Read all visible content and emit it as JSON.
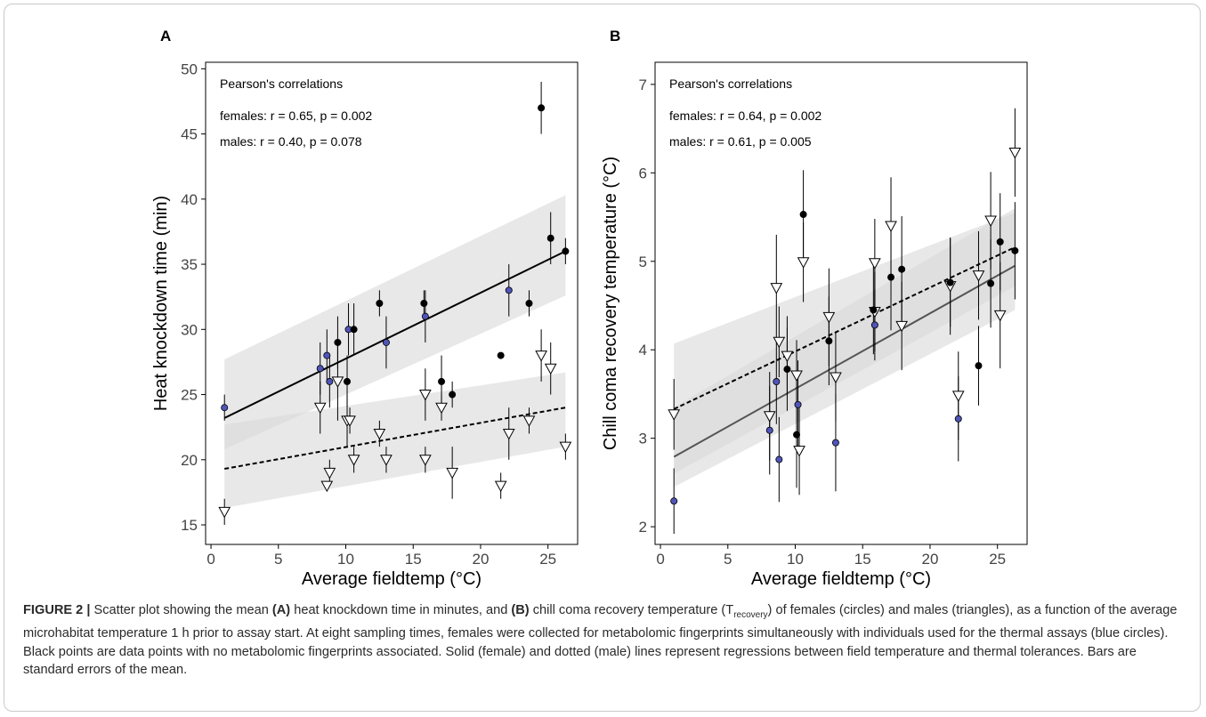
{
  "panels": [
    {
      "letter": "A",
      "annotation_title": "Pearson's correlations",
      "annotation_lines": [
        "females: r = 0.65, p = 0.002",
        "males: r = 0.40, p = 0.078"
      ]
    },
    {
      "letter": "B",
      "annotation_title": "Pearson's correlations",
      "annotation_lines": [
        "females: r = 0.64, p = 0.002",
        "males: r = 0.61, p = 0.005"
      ]
    }
  ],
  "caption": {
    "label": "FIGURE 2 |",
    "t1": " Scatter plot showing the mean ",
    "a": "(A)",
    "t2": " heat knockdown time in minutes, and ",
    "b": "(B)",
    "t3": " chill coma recovery temperature (T",
    "sub": "recovery",
    "t4": ") of females (circles) and males (triangles), as a function of the average microhabitat temperature 1 h prior to assay start. At eight sampling times, females were collected for metabolomic fingerprints simultaneously with individuals used for the thermal assays (blue circles). Black points are data points with no metabolomic fingerprints associated. Solid (female) and dotted (male) lines represent regressions between field temperature and thermal tolerances. Bars are standard errors of the mean."
  },
  "colors": {
    "blue_point": "#4f55b8",
    "black_point": "#000000",
    "male_marker_fill": "#ffffff",
    "ribbon": "#d9d9d9",
    "female_line_A": "#000000",
    "female_line_B": "#555555",
    "male_line": "#000000"
  },
  "chart_data": [
    {
      "type": "scatter",
      "title": "",
      "xlabel": "Average fieldtemp (°C)",
      "ylabel": "Heat knockdown time (min)",
      "xlim": [
        -0.4,
        27.2
      ],
      "ylim": [
        13.5,
        50.5
      ],
      "xticks": [
        0,
        5,
        10,
        15,
        20,
        25
      ],
      "yticks": [
        15,
        20,
        25,
        30,
        35,
        40,
        45,
        50
      ],
      "grid": false,
      "series": [],
      "females": [
        {
          "x": 1.0,
          "y": 24.0,
          "se": 1.0,
          "group": "blue"
        },
        {
          "x": 8.1,
          "y": 27.0,
          "se": 2.0,
          "group": "blue"
        },
        {
          "x": 8.6,
          "y": 28.0,
          "se": 2.0,
          "group": "blue"
        },
        {
          "x": 8.8,
          "y": 26.0,
          "se": 2.0,
          "group": "blue"
        },
        {
          "x": 10.2,
          "y": 30.0,
          "se": 2.0,
          "group": "blue"
        },
        {
          "x": 13.0,
          "y": 29.0,
          "se": 2.0,
          "group": "blue"
        },
        {
          "x": 15.9,
          "y": 31.0,
          "se": 2.0,
          "group": "blue"
        },
        {
          "x": 22.1,
          "y": 33.0,
          "se": 2.0,
          "group": "blue"
        },
        {
          "x": 9.4,
          "y": 29.0,
          "se": 2.0,
          "group": "black"
        },
        {
          "x": 10.1,
          "y": 26.0,
          "se": 2.0,
          "group": "black"
        },
        {
          "x": 10.6,
          "y": 30.0,
          "se": 2.0,
          "group": "black"
        },
        {
          "x": 12.5,
          "y": 32.0,
          "se": 1.0,
          "group": "black"
        },
        {
          "x": 15.8,
          "y": 32.0,
          "se": 1.0,
          "group": "black"
        },
        {
          "x": 17.1,
          "y": 26.0,
          "se": 2.0,
          "group": "black"
        },
        {
          "x": 17.9,
          "y": 25.0,
          "se": 1.0,
          "group": "black"
        },
        {
          "x": 21.5,
          "y": 28.0,
          "se": 0.0,
          "group": "black"
        },
        {
          "x": 23.6,
          "y": 32.0,
          "se": 1.0,
          "group": "black"
        },
        {
          "x": 24.5,
          "y": 47.0,
          "se": 2.0,
          "group": "black"
        },
        {
          "x": 25.2,
          "y": 37.0,
          "se": 2.0,
          "group": "black"
        },
        {
          "x": 26.3,
          "y": 36.0,
          "se": 1.0,
          "group": "black"
        }
      ],
      "males": [
        {
          "x": 1.0,
          "y": 16.0,
          "se": 1.0
        },
        {
          "x": 8.1,
          "y": 24.0,
          "se": 2.0
        },
        {
          "x": 8.6,
          "y": 18.0,
          "se": 0.0
        },
        {
          "x": 8.8,
          "y": 19.0,
          "se": 1.0
        },
        {
          "x": 9.4,
          "y": 26.0,
          "se": 3.0
        },
        {
          "x": 10.1,
          "y": 23.0,
          "se": 2.0
        },
        {
          "x": 10.3,
          "y": 23.0,
          "se": 1.0
        },
        {
          "x": 10.6,
          "y": 20.0,
          "se": 1.0
        },
        {
          "x": 12.5,
          "y": 22.0,
          "se": 1.0
        },
        {
          "x": 13.0,
          "y": 20.0,
          "se": 1.0
        },
        {
          "x": 15.9,
          "y": 25.0,
          "se": 2.0
        },
        {
          "x": 15.9,
          "y": 20.0,
          "se": 1.0
        },
        {
          "x": 17.1,
          "y": 24.0,
          "se": 1.0
        },
        {
          "x": 17.9,
          "y": 19.0,
          "se": 2.0
        },
        {
          "x": 21.5,
          "y": 18.0,
          "se": 1.0
        },
        {
          "x": 22.1,
          "y": 22.0,
          "se": 2.0
        },
        {
          "x": 23.6,
          "y": 23.0,
          "se": 1.0
        },
        {
          "x": 24.5,
          "y": 28.0,
          "se": 2.0
        },
        {
          "x": 25.2,
          "y": 27.0,
          "se": 2.0
        },
        {
          "x": 26.3,
          "y": 21.0,
          "se": 1.0
        }
      ],
      "female_fit": {
        "x": [
          1.0,
          26.3
        ],
        "y": [
          23.2,
          36.0
        ],
        "ci_lower": [
          20.8,
          32.6
        ],
        "ci_upper": [
          27.7,
          40.3
        ]
      },
      "male_fit": {
        "x": [
          1.0,
          26.3
        ],
        "y": [
          19.3,
          24.0
        ],
        "ci_lower": [
          16.3,
          21.0
        ],
        "ci_upper": [
          22.7,
          26.7
        ]
      }
    },
    {
      "type": "scatter",
      "title": "",
      "xlabel": "Average fieldtemp (°C)",
      "ylabel": "Chill coma recovery temperature (°C)",
      "xlim": [
        -0.4,
        27.2
      ],
      "ylim": [
        1.8,
        7.25
      ],
      "xticks": [
        0,
        5,
        10,
        15,
        20,
        25
      ],
      "yticks": [
        2,
        3,
        4,
        5,
        6,
        7
      ],
      "grid": false,
      "series": [],
      "females": [
        {
          "x": 1.0,
          "y": 2.29,
          "se": 0.37,
          "group": "blue"
        },
        {
          "x": 8.1,
          "y": 3.09,
          "se": 0.5,
          "group": "blue"
        },
        {
          "x": 8.6,
          "y": 3.64,
          "se": 0.48,
          "group": "blue"
        },
        {
          "x": 8.8,
          "y": 2.76,
          "se": 0.48,
          "group": "blue"
        },
        {
          "x": 10.2,
          "y": 3.38,
          "se": 0.5,
          "group": "blue"
        },
        {
          "x": 13.0,
          "y": 2.95,
          "se": 0.55,
          "group": "blue"
        },
        {
          "x": 15.9,
          "y": 4.28,
          "se": 0.4,
          "group": "blue"
        },
        {
          "x": 22.1,
          "y": 3.22,
          "se": 0.48,
          "group": "blue"
        },
        {
          "x": 9.4,
          "y": 3.78,
          "se": 0.47,
          "group": "black"
        },
        {
          "x": 10.1,
          "y": 3.04,
          "se": 0.6,
          "group": "black"
        },
        {
          "x": 10.6,
          "y": 5.53,
          "se": 0.5,
          "group": "black"
        },
        {
          "x": 12.5,
          "y": 4.1,
          "se": 0.5,
          "group": "black"
        },
        {
          "x": 15.8,
          "y": 4.45,
          "se": 0.5,
          "group": "black"
        },
        {
          "x": 17.1,
          "y": 4.82,
          "se": 0.6,
          "group": "black"
        },
        {
          "x": 17.9,
          "y": 4.91,
          "se": 0.6,
          "group": "black"
        },
        {
          "x": 21.5,
          "y": 4.76,
          "se": 0.5,
          "group": "black"
        },
        {
          "x": 23.6,
          "y": 3.82,
          "se": 0.45,
          "group": "black"
        },
        {
          "x": 24.5,
          "y": 4.75,
          "se": 0.5,
          "group": "black"
        },
        {
          "x": 25.2,
          "y": 5.22,
          "se": 0.55,
          "group": "black"
        },
        {
          "x": 26.3,
          "y": 5.12,
          "se": 0.55,
          "group": "black"
        }
      ],
      "males": [
        {
          "x": 1.0,
          "y": 3.27,
          "se": 0.4
        },
        {
          "x": 8.1,
          "y": 3.25,
          "se": 0.5
        },
        {
          "x": 8.6,
          "y": 4.7,
          "se": 0.6
        },
        {
          "x": 8.8,
          "y": 4.09,
          "se": 0.4
        },
        {
          "x": 9.4,
          "y": 3.93,
          "se": 0.45
        },
        {
          "x": 10.1,
          "y": 3.71,
          "se": 0.4
        },
        {
          "x": 10.3,
          "y": 2.86,
          "se": 0.5
        },
        {
          "x": 10.6,
          "y": 4.99,
          "se": 0.45
        },
        {
          "x": 12.5,
          "y": 4.37,
          "se": 0.55
        },
        {
          "x": 13.0,
          "y": 3.69,
          "se": 0.5
        },
        {
          "x": 15.9,
          "y": 4.98,
          "se": 0.5
        },
        {
          "x": 15.9,
          "y": 4.43,
          "se": 0.45
        },
        {
          "x": 17.1,
          "y": 5.4,
          "se": 0.55
        },
        {
          "x": 17.9,
          "y": 4.27,
          "se": 0.5
        },
        {
          "x": 21.5,
          "y": 4.72,
          "se": 0.55
        },
        {
          "x": 22.1,
          "y": 3.48,
          "se": 0.5
        },
        {
          "x": 23.6,
          "y": 4.84,
          "se": 0.5
        },
        {
          "x": 24.5,
          "y": 5.46,
          "se": 0.55
        },
        {
          "x": 25.2,
          "y": 4.39,
          "se": 0.6
        },
        {
          "x": 26.3,
          "y": 6.23,
          "se": 0.5
        }
      ],
      "female_fit": {
        "x": [
          1.0,
          26.3
        ],
        "y": [
          2.79,
          4.95
        ],
        "ci_lower": [
          2.45,
          4.45
        ],
        "ci_upper": [
          3.35,
          5.6
        ]
      },
      "male_fit": {
        "x": [
          1.0,
          26.3
        ],
        "y": [
          3.33,
          5.16
        ],
        "ci_lower": [
          2.6,
          4.72
        ],
        "ci_upper": [
          4.07,
          5.55
        ]
      }
    }
  ]
}
